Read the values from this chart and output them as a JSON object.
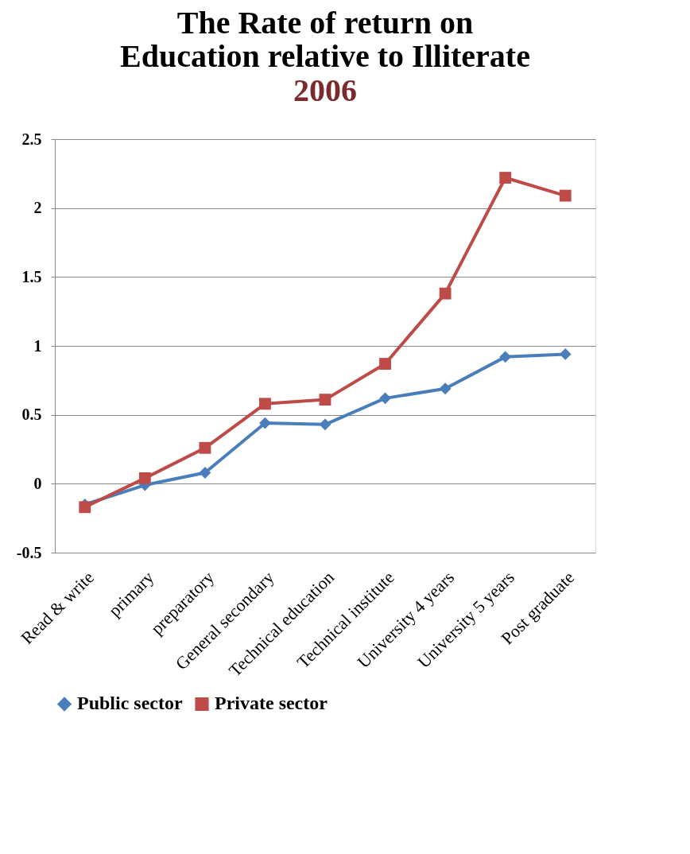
{
  "chart_data": {
    "type": "line",
    "title": "The Rate of return on\nEducation relative to Illiterate",
    "subtitle": "2006",
    "categories": [
      "Read & write",
      "primary",
      "preparatory",
      "General secondary",
      "Technical education",
      "Technical institute",
      "University 4 years",
      "University 5 years",
      "Post graduate"
    ],
    "series": [
      {
        "name": "Public sector",
        "color": "#4a7ebb",
        "marker": "diamond",
        "values": [
          -0.15,
          -0.01,
          0.08,
          0.44,
          0.43,
          0.62,
          0.69,
          0.92,
          0.94
        ]
      },
      {
        "name": "Private sector",
        "color": "#be4b48",
        "marker": "square",
        "values": [
          -0.17,
          0.04,
          0.26,
          0.58,
          0.61,
          0.87,
          1.38,
          2.22,
          2.09
        ]
      }
    ],
    "ylim": [
      -0.5,
      2.5
    ],
    "yticks": [
      -0.5,
      0,
      0.5,
      1,
      1.5,
      2,
      2.5
    ],
    "grid": "y",
    "legend": "bottom",
    "line_style": "solid"
  }
}
